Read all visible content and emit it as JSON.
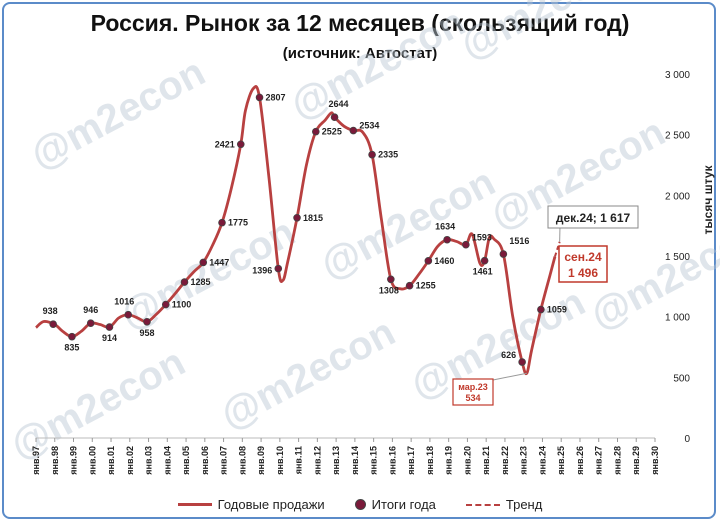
{
  "chart_data": {
    "type": "line",
    "title": "Россия. Рынок за 12 месяцев (скользящий год)",
    "subtitle": "(источник: Автостат)",
    "ylabel": "тысяч штук",
    "ylim": [
      0,
      3000
    ],
    "yticks": [
      "0",
      "500",
      "1 000",
      "1 500",
      "2 000",
      "2 500",
      "3 000"
    ],
    "xlabels": [
      "янв.97",
      "янв.98",
      "янв.99",
      "янв.00",
      "янв.01",
      "янв.02",
      "янв.03",
      "янв.04",
      "янв.05",
      "янв.06",
      "янв.07",
      "янв.08",
      "янв.09",
      "янв.10",
      "янв.11",
      "янв.12",
      "янв.13",
      "янв.14",
      "янв.15",
      "янв.16",
      "янв.17",
      "янв.18",
      "янв.19",
      "янв.20",
      "янв.21",
      "янв.22",
      "янв.23",
      "янв.24",
      "янв.25",
      "янв.26",
      "янв.27",
      "янв.28",
      "янв.29",
      "янв.30"
    ],
    "colors": {
      "line": "#b84040",
      "marker": "#7a1a3a",
      "callout_border": "#c0392b",
      "callout_text": "#c0392b"
    },
    "annual_totals": [
      {
        "year": 1997,
        "value": 938,
        "label": "938"
      },
      {
        "year": 1998,
        "value": 835,
        "label": "835"
      },
      {
        "year": 1999,
        "value": 946,
        "label": "946"
      },
      {
        "year": 2000,
        "value": 914,
        "label": "914"
      },
      {
        "year": 2001,
        "value": 1016,
        "label": "1016"
      },
      {
        "year": 2002,
        "value": 958,
        "label": "958"
      },
      {
        "year": 2003,
        "value": 1100,
        "label": "1100"
      },
      {
        "year": 2004,
        "value": 1285,
        "label": "1285"
      },
      {
        "year": 2005,
        "value": 1447,
        "label": "1447"
      },
      {
        "year": 2006,
        "value": 1775,
        "label": "1775"
      },
      {
        "year": 2007,
        "value": 2421,
        "label": "2421"
      },
      {
        "year": 2008,
        "value": 2807,
        "label": "2807"
      },
      {
        "year": 2009,
        "value": 1396,
        "label": "1396"
      },
      {
        "year": 2010,
        "value": 1815,
        "label": "1815"
      },
      {
        "year": 2011,
        "value": 2525,
        "label": "2525"
      },
      {
        "year": 2012,
        "value": 2644,
        "label": "2644"
      },
      {
        "year": 2013,
        "value": 2534,
        "label": "2534"
      },
      {
        "year": 2014,
        "value": 2335,
        "label": "2335"
      },
      {
        "year": 2015,
        "value": 1308,
        "label": "1308"
      },
      {
        "year": 2016,
        "value": 1255,
        "label": "1255"
      },
      {
        "year": 2017,
        "value": 1460,
        "label": "1460"
      },
      {
        "year": 2018,
        "value": 1634,
        "label": "1634"
      },
      {
        "year": 2019,
        "value": 1593,
        "label": "1593"
      },
      {
        "year": 2020,
        "value": 1461,
        "label": "1461"
      },
      {
        "year": 2021,
        "value": 1516,
        "label": "1516"
      },
      {
        "year": 2022,
        "value": 626,
        "label": "626"
      },
      {
        "year": 2023,
        "value": 1059,
        "label": "1059"
      }
    ],
    "rolling_sales": [
      [
        "1997-01-01",
        910
      ],
      [
        "1997-06-01",
        960
      ],
      [
        "1998-01-01",
        935
      ],
      [
        "1998-06-01",
        880
      ],
      [
        "1998-12-01",
        835
      ],
      [
        "1999-06-01",
        880
      ],
      [
        "1999-12-01",
        946
      ],
      [
        "2000-06-01",
        935
      ],
      [
        "2000-12-01",
        914
      ],
      [
        "2001-06-01",
        990
      ],
      [
        "2001-12-01",
        1016
      ],
      [
        "2002-06-01",
        990
      ],
      [
        "2002-12-01",
        958
      ],
      [
        "2003-06-01",
        1020
      ],
      [
        "2003-12-01",
        1100
      ],
      [
        "2004-06-01",
        1190
      ],
      [
        "2004-12-01",
        1285
      ],
      [
        "2005-06-01",
        1370
      ],
      [
        "2005-12-01",
        1447
      ],
      [
        "2006-06-01",
        1590
      ],
      [
        "2006-12-01",
        1775
      ],
      [
        "2007-06-01",
        2060
      ],
      [
        "2007-12-01",
        2421
      ],
      [
        "2008-03-01",
        2700
      ],
      [
        "2008-08-01",
        2880
      ],
      [
        "2008-12-01",
        2807
      ],
      [
        "2009-06-01",
        2150
      ],
      [
        "2009-12-01",
        1396
      ],
      [
        "2010-03-01",
        1300
      ],
      [
        "2010-06-01",
        1450
      ],
      [
        "2010-12-01",
        1815
      ],
      [
        "2011-06-01",
        2250
      ],
      [
        "2011-12-01",
        2525
      ],
      [
        "2012-06-01",
        2620
      ],
      [
        "2012-10-01",
        2680
      ],
      [
        "2012-12-01",
        2644
      ],
      [
        "2013-06-01",
        2570
      ],
      [
        "2013-12-01",
        2534
      ],
      [
        "2014-06-01",
        2520
      ],
      [
        "2014-12-01",
        2335
      ],
      [
        "2015-06-01",
        1800
      ],
      [
        "2015-12-01",
        1308
      ],
      [
        "2016-06-01",
        1230
      ],
      [
        "2016-12-01",
        1255
      ],
      [
        "2017-06-01",
        1350
      ],
      [
        "2017-12-01",
        1460
      ],
      [
        "2018-06-01",
        1580
      ],
      [
        "2018-12-01",
        1634
      ],
      [
        "2019-06-01",
        1620
      ],
      [
        "2019-12-01",
        1593
      ],
      [
        "2020-04-01",
        1680
      ],
      [
        "2020-09-01",
        1440
      ],
      [
        "2020-12-01",
        1461
      ],
      [
        "2021-03-01",
        1650
      ],
      [
        "2021-06-01",
        1640
      ],
      [
        "2021-12-01",
        1516
      ],
      [
        "2022-06-01",
        1000
      ],
      [
        "2022-12-01",
        626
      ],
      [
        "2023-03-01",
        534
      ],
      [
        "2023-06-01",
        720
      ],
      [
        "2023-12-01",
        1059
      ],
      [
        "2024-06-01",
        1350
      ],
      [
        "2024-09-01",
        1496
      ]
    ],
    "trend": [
      [
        "2024-09-01",
        1496
      ],
      [
        "2024-12-01",
        1617
      ]
    ],
    "callouts": {
      "forecast": {
        "label": "дек.24; 1 617",
        "x": "2024-12-01",
        "y": 1617
      },
      "current": {
        "line1": "сен.24",
        "line2": "1 496",
        "x": "2024-09-01",
        "y": 1496
      },
      "minimum": {
        "line1": "мар.23",
        "line2": "534",
        "x": "2023-03-01",
        "y": 534
      }
    },
    "legend": [
      "Годовые продажи",
      "Итоги года",
      "Тренд"
    ],
    "legend_position": "bottom",
    "watermark": "@m2econ",
    "grid": false
  }
}
